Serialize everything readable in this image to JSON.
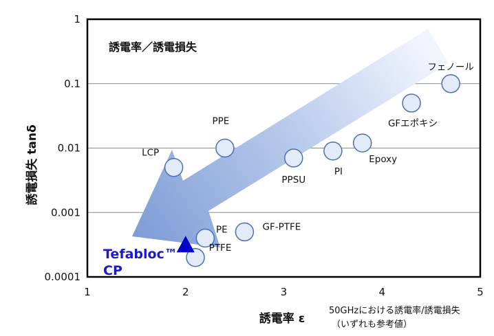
{
  "chart_data": {
    "type": "scatter",
    "title": "誘電率／誘電損失",
    "xlabel": "誘電率 ε",
    "ylabel": "誘電損失 tanδ",
    "xlim": [
      1,
      5
    ],
    "ylim": [
      0.0001,
      1
    ],
    "y_scale": "log",
    "x_ticks": [
      "1",
      "2",
      "3",
      "4",
      "5"
    ],
    "y_ticks": [
      "1",
      "0.1",
      "0.01",
      "0.001",
      "0.0001"
    ],
    "grid": "horizontal",
    "note_line1": "50GHzにおける誘電率/誘電損失",
    "note_line2": "（いずれも参考値）",
    "points": [
      {
        "label": "フェノール",
        "x": 4.7,
        "y": 0.1
      },
      {
        "label": "GFエポキシ",
        "x": 4.3,
        "y": 0.05
      },
      {
        "label": "Epoxy",
        "x": 3.8,
        "y": 0.012
      },
      {
        "label": "PI",
        "x": 3.5,
        "y": 0.009
      },
      {
        "label": "PPSU",
        "x": 3.1,
        "y": 0.007
      },
      {
        "label": "PPE",
        "x": 2.4,
        "y": 0.01
      },
      {
        "label": "LCP",
        "x": 1.88,
        "y": 0.005
      },
      {
        "label": "GF-PTFE",
        "x": 2.6,
        "y": 0.0005
      },
      {
        "label": "PE",
        "x": 2.2,
        "y": 0.0004
      },
      {
        "label": "PTFE",
        "x": 2.1,
        "y": 0.0002
      }
    ],
    "highlight": {
      "label_line1": "Tefabloc™",
      "label_line2": "CP",
      "x": 2.0,
      "y": 0.0003,
      "marker": "triangle",
      "color": "#0000cc"
    }
  }
}
